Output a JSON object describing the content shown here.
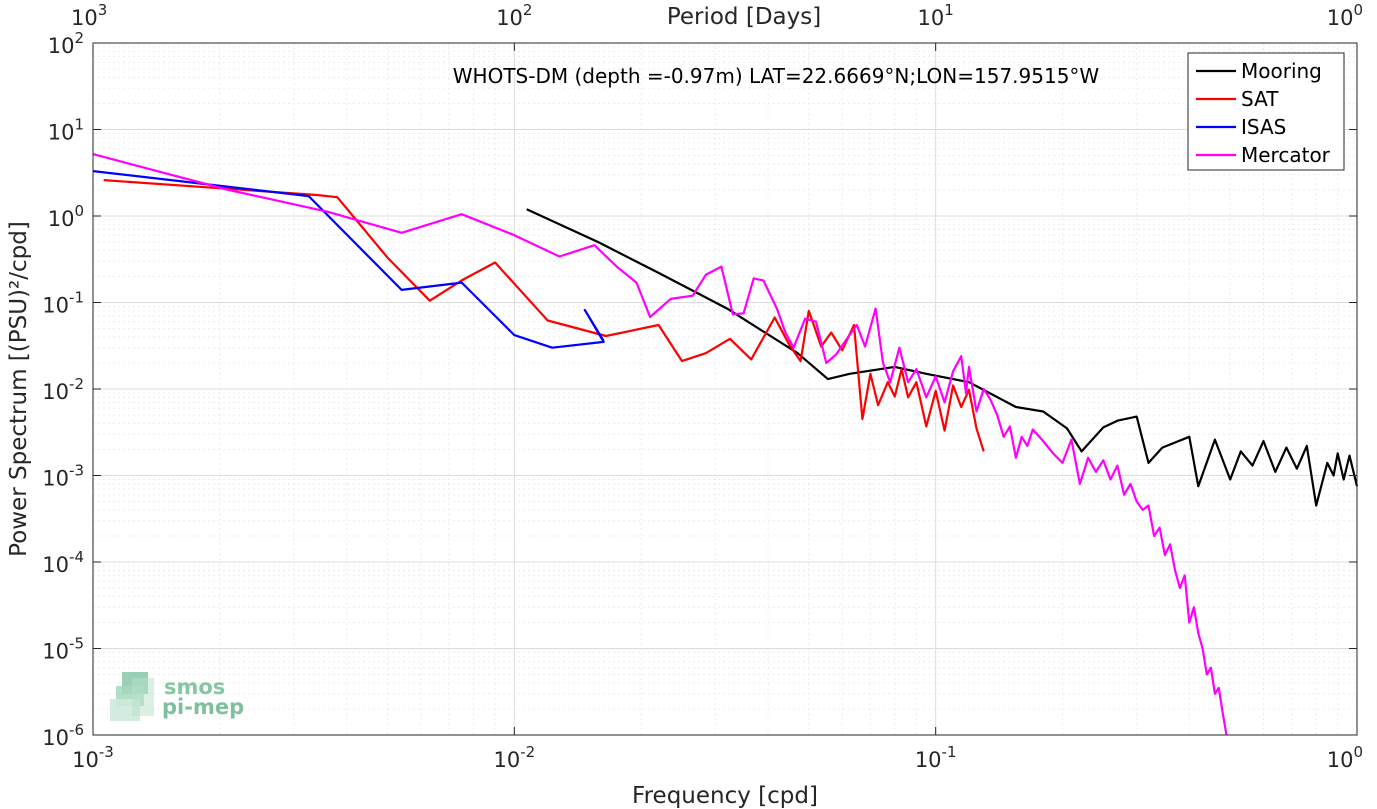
{
  "chart_data": {
    "type": "line",
    "title": "WHOTS-DM (depth =-0.97m) LAT=22.6669°N;LON=157.9515°W",
    "xlabel": "Frequency [cpd]",
    "ylabel": "Power Spectrum [(PSU)²/cpd]",
    "top_xlabel": "Period [Days]",
    "xscale": "log",
    "yscale": "log",
    "xlim": [
      0.001,
      1
    ],
    "ylim": [
      1e-06,
      100
    ],
    "grid": true,
    "legend_position": "top-right",
    "x_ticks": [
      {
        "value": 0.001,
        "base": "10",
        "exp": "-3"
      },
      {
        "value": 0.01,
        "base": "10",
        "exp": "-2"
      },
      {
        "value": 0.1,
        "base": "10",
        "exp": "-1"
      },
      {
        "value": 1,
        "base": "10",
        "exp": "0"
      }
    ],
    "top_ticks": [
      {
        "freq": 0.001,
        "base": "10",
        "exp": "3"
      },
      {
        "freq": 0.01,
        "base": "10",
        "exp": "2"
      },
      {
        "freq": 0.1,
        "base": "10",
        "exp": "1"
      },
      {
        "freq": 1,
        "base": "10",
        "exp": "0"
      }
    ],
    "y_ticks": [
      {
        "value": 100,
        "base": "10",
        "exp": "2"
      },
      {
        "value": 10,
        "base": "10",
        "exp": "1"
      },
      {
        "value": 1,
        "base": "10",
        "exp": "0"
      },
      {
        "value": 0.1,
        "base": "10",
        "exp": "-1"
      },
      {
        "value": 0.01,
        "base": "10",
        "exp": "-2"
      },
      {
        "value": 0.001,
        "base": "10",
        "exp": "-3"
      },
      {
        "value": 0.0001,
        "base": "10",
        "exp": "-4"
      },
      {
        "value": 1e-05,
        "base": "10",
        "exp": "-5"
      },
      {
        "value": 1e-06,
        "base": "10",
        "exp": "-6"
      }
    ],
    "series": [
      {
        "name": "Mooring",
        "color": "#000000",
        "points": [
          [
            0.0107,
            1.2
          ],
          [
            0.0158,
            0.5
          ],
          [
            0.022,
            0.22
          ],
          [
            0.032,
            0.085
          ],
          [
            0.047,
            0.026
          ],
          [
            0.0555,
            0.013
          ],
          [
            0.0625,
            0.015
          ],
          [
            0.08,
            0.018
          ],
          [
            0.095,
            0.015
          ],
          [
            0.12,
            0.012
          ],
          [
            0.155,
            0.0062
          ],
          [
            0.18,
            0.0055
          ],
          [
            0.205,
            0.0035
          ],
          [
            0.222,
            0.0019
          ],
          [
            0.25,
            0.0036
          ],
          [
            0.27,
            0.0043
          ],
          [
            0.3,
            0.0048
          ],
          [
            0.32,
            0.0014
          ],
          [
            0.345,
            0.0021
          ],
          [
            0.4,
            0.0028
          ],
          [
            0.42,
            0.00075
          ],
          [
            0.46,
            0.0026
          ],
          [
            0.5,
            0.0009
          ],
          [
            0.53,
            0.0019
          ],
          [
            0.565,
            0.0013
          ],
          [
            0.6,
            0.0025
          ],
          [
            0.64,
            0.0011
          ],
          [
            0.68,
            0.0021
          ],
          [
            0.72,
            0.0012
          ],
          [
            0.76,
            0.0022
          ],
          [
            0.8,
            0.00045
          ],
          [
            0.85,
            0.0014
          ],
          [
            0.88,
            0.001
          ],
          [
            0.9,
            0.0018
          ],
          [
            0.93,
            0.0009
          ],
          [
            0.96,
            0.0017
          ],
          [
            1.0,
            0.00075
          ]
        ]
      },
      {
        "name": "SAT",
        "color": "#ff0000",
        "points": [
          [
            0.00106,
            2.6
          ],
          [
            0.0034,
            1.75
          ],
          [
            0.0038,
            1.65
          ],
          [
            0.005,
            0.33
          ],
          [
            0.0063,
            0.105
          ],
          [
            0.0075,
            0.18
          ],
          [
            0.009,
            0.29
          ],
          [
            0.012,
            0.062
          ],
          [
            0.0165,
            0.041
          ],
          [
            0.022,
            0.055
          ],
          [
            0.025,
            0.021
          ],
          [
            0.0285,
            0.026
          ],
          [
            0.0325,
            0.038
          ],
          [
            0.0365,
            0.022
          ],
          [
            0.0415,
            0.067
          ],
          [
            0.045,
            0.032
          ],
          [
            0.0478,
            0.021
          ],
          [
            0.05,
            0.08
          ],
          [
            0.0535,
            0.031
          ],
          [
            0.0565,
            0.045
          ],
          [
            0.06,
            0.028
          ],
          [
            0.064,
            0.055
          ],
          [
            0.067,
            0.0045
          ],
          [
            0.07,
            0.015
          ],
          [
            0.073,
            0.0065
          ],
          [
            0.077,
            0.012
          ],
          [
            0.08,
            0.0082
          ],
          [
            0.083,
            0.017
          ],
          [
            0.086,
            0.008
          ],
          [
            0.09,
            0.012
          ],
          [
            0.095,
            0.0037
          ],
          [
            0.1,
            0.0095
          ],
          [
            0.105,
            0.0033
          ],
          [
            0.11,
            0.011
          ],
          [
            0.115,
            0.0062
          ],
          [
            0.12,
            0.0098
          ],
          [
            0.125,
            0.0035
          ],
          [
            0.13,
            0.0019
          ]
        ]
      },
      {
        "name": "ISAS",
        "color": "#0000ff",
        "points": [
          [
            0.001,
            3.3
          ],
          [
            0.00325,
            1.7
          ],
          [
            0.0054,
            0.14
          ],
          [
            0.0075,
            0.17
          ],
          [
            0.01,
            0.042
          ],
          [
            0.0123,
            0.03
          ],
          [
            0.0163,
            0.035
          ],
          [
            0.0147,
            0.082
          ],
          [
            0.0163,
            0.036
          ]
        ]
      },
      {
        "name": "Mercator",
        "color": "#ff00ff",
        "points": [
          [
            0.001,
            5.2
          ],
          [
            0.0021,
            2.0
          ],
          [
            0.0036,
            1.12
          ],
          [
            0.0054,
            0.64
          ],
          [
            0.0075,
            1.05
          ],
          [
            0.01,
            0.6
          ],
          [
            0.0128,
            0.34
          ],
          [
            0.0155,
            0.46
          ],
          [
            0.0175,
            0.26
          ],
          [
            0.0195,
            0.17
          ],
          [
            0.021,
            0.068
          ],
          [
            0.0235,
            0.11
          ],
          [
            0.0265,
            0.12
          ],
          [
            0.0285,
            0.21
          ],
          [
            0.031,
            0.26
          ],
          [
            0.033,
            0.073
          ],
          [
            0.035,
            0.075
          ],
          [
            0.037,
            0.19
          ],
          [
            0.039,
            0.18
          ],
          [
            0.042,
            0.085
          ],
          [
            0.044,
            0.045
          ],
          [
            0.046,
            0.03
          ],
          [
            0.049,
            0.065
          ],
          [
            0.052,
            0.06
          ],
          [
            0.055,
            0.02
          ],
          [
            0.058,
            0.025
          ],
          [
            0.062,
            0.04
          ],
          [
            0.065,
            0.055
          ],
          [
            0.068,
            0.031
          ],
          [
            0.072,
            0.085
          ],
          [
            0.075,
            0.02
          ],
          [
            0.078,
            0.012
          ],
          [
            0.082,
            0.03
          ],
          [
            0.086,
            0.012
          ],
          [
            0.09,
            0.017
          ],
          [
            0.095,
            0.008
          ],
          [
            0.1,
            0.014
          ],
          [
            0.105,
            0.007
          ],
          [
            0.11,
            0.016
          ],
          [
            0.115,
            0.024
          ],
          [
            0.118,
            0.009
          ],
          [
            0.12,
            0.018
          ],
          [
            0.125,
            0.0055
          ],
          [
            0.13,
            0.01
          ],
          [
            0.135,
            0.0075
          ],
          [
            0.14,
            0.005
          ],
          [
            0.145,
            0.0028
          ],
          [
            0.15,
            0.0037
          ],
          [
            0.155,
            0.0016
          ],
          [
            0.16,
            0.0028
          ],
          [
            0.165,
            0.0022
          ],
          [
            0.17,
            0.0034
          ],
          [
            0.18,
            0.0025
          ],
          [
            0.19,
            0.0018
          ],
          [
            0.2,
            0.0014
          ],
          [
            0.21,
            0.0026
          ],
          [
            0.22,
            0.0008
          ],
          [
            0.23,
            0.0016
          ],
          [
            0.24,
            0.0011
          ],
          [
            0.25,
            0.0015
          ],
          [
            0.26,
            0.0009
          ],
          [
            0.27,
            0.0013
          ],
          [
            0.28,
            0.0006
          ],
          [
            0.29,
            0.0008
          ],
          [
            0.3,
            0.0005
          ],
          [
            0.31,
            0.0004
          ],
          [
            0.32,
            0.00045
          ],
          [
            0.33,
            0.0002
          ],
          [
            0.34,
            0.00025
          ],
          [
            0.35,
            0.00012
          ],
          [
            0.36,
            0.00016
          ],
          [
            0.37,
            8e-05
          ],
          [
            0.38,
            5e-05
          ],
          [
            0.39,
            7e-05
          ],
          [
            0.4,
            2e-05
          ],
          [
            0.41,
            3e-05
          ],
          [
            0.42,
            1.5e-05
          ],
          [
            0.43,
            1e-05
          ],
          [
            0.44,
            5e-06
          ],
          [
            0.45,
            6e-06
          ],
          [
            0.46,
            3e-06
          ],
          [
            0.47,
            3.5e-06
          ],
          [
            0.48,
            1.8e-06
          ],
          [
            0.49,
            1e-06
          ]
        ]
      }
    ]
  },
  "logo": {
    "line1": "smos",
    "line2": "pi-mep"
  }
}
